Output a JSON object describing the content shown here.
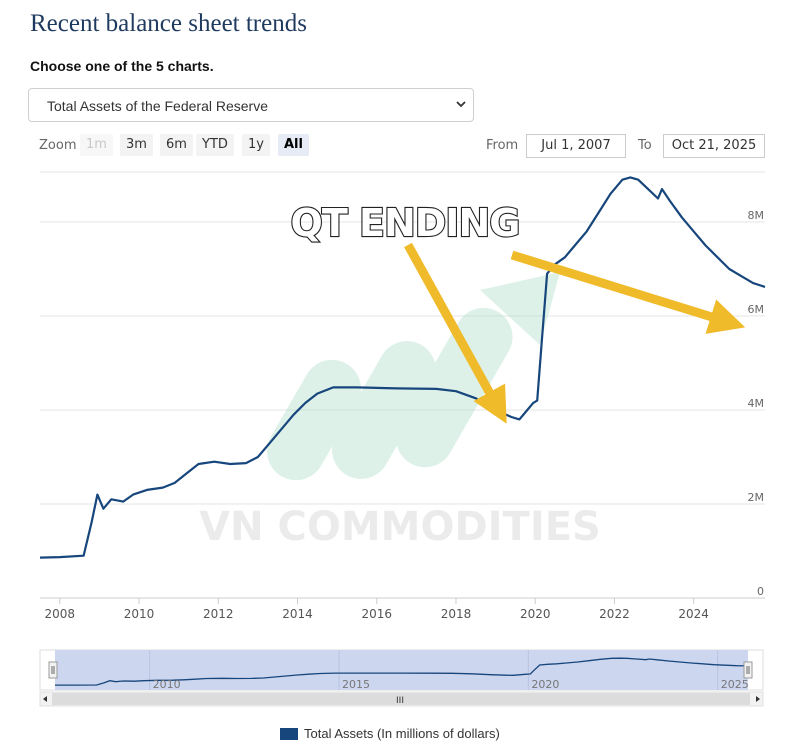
{
  "header": {
    "title": "Recent balance sheet trends",
    "subtitle": "Choose one of the 5 charts."
  },
  "chart_select": {
    "value": "Total Assets of the Federal Reserve"
  },
  "toolbar": {
    "zoom_label": "Zoom",
    "zoom_buttons": [
      "1m",
      "3m",
      "6m",
      "YTD",
      "1y",
      "All"
    ],
    "active_zoom": "All",
    "from_label": "From",
    "from_value": "Jul 1, 2007",
    "to_label": "To",
    "to_value": "Oct 21, 2025"
  },
  "overlay": {
    "annotation": "QT ENDING",
    "watermark": "VN COMMODITIES"
  },
  "legend": {
    "label": "Total Assets (In millions of dollars)"
  },
  "navigator": {
    "labels": [
      "2010",
      "2015",
      "2020",
      "2025"
    ],
    "handle_glyph": "III"
  },
  "colors": {
    "series": "#17467c",
    "arrow": "#f0bb2a",
    "navigator_fill": "#cdd6ef"
  },
  "chart_data": {
    "type": "line",
    "title": "",
    "xlabel": "",
    "ylabel": "",
    "x_ticks": [
      "2008",
      "2010",
      "2012",
      "2014",
      "2016",
      "2018",
      "2020",
      "2022",
      "2024"
    ],
    "y_ticks": [
      "0",
      "2M",
      "4M",
      "6M",
      "8M"
    ],
    "xlim": [
      2007.5,
      2025.8
    ],
    "ylim": [
      0,
      8000000
    ],
    "grid": true,
    "legend_position": "bottom-center",
    "series": [
      {
        "name": "Total Assets (In millions of dollars)",
        "x": [
          2007.5,
          2008.0,
          2008.6,
          2008.8,
          2008.95,
          2009.1,
          2009.3,
          2009.6,
          2009.85,
          2010.2,
          2010.6,
          2010.9,
          2011.2,
          2011.5,
          2011.9,
          2012.3,
          2012.7,
          2013.0,
          2013.3,
          2013.6,
          2013.9,
          2014.2,
          2014.5,
          2014.9,
          2015.5,
          2016.5,
          2017.5,
          2018.0,
          2018.5,
          2019.0,
          2019.4,
          2019.6,
          2019.8,
          2019.95,
          2020.05,
          2020.15,
          2020.3,
          2020.5,
          2020.75,
          2021.0,
          2021.3,
          2021.6,
          2021.9,
          2022.2,
          2022.4,
          2022.6,
          2022.85,
          2023.1,
          2023.2,
          2023.4,
          2023.7,
          2024.0,
          2024.3,
          2024.6,
          2024.9,
          2025.2,
          2025.5,
          2025.8
        ],
        "values": [
          860000,
          870000,
          900000,
          1600000,
          2200000,
          1900000,
          2100000,
          2050000,
          2200000,
          2300000,
          2350000,
          2450000,
          2650000,
          2850000,
          2900000,
          2850000,
          2870000,
          3000000,
          3300000,
          3600000,
          3900000,
          4150000,
          4350000,
          4480000,
          4480000,
          4460000,
          4450000,
          4400000,
          4250000,
          4000000,
          3850000,
          3800000,
          4000000,
          4150000,
          4200000,
          5300000,
          6900000,
          7100000,
          7250000,
          7500000,
          7800000,
          8200000,
          8600000,
          8900000,
          8950000,
          8900000,
          8700000,
          8500000,
          8700000,
          8450000,
          8100000,
          7800000,
          7500000,
          7250000,
          7000000,
          6850000,
          6700000,
          6620000
        ]
      }
    ]
  }
}
